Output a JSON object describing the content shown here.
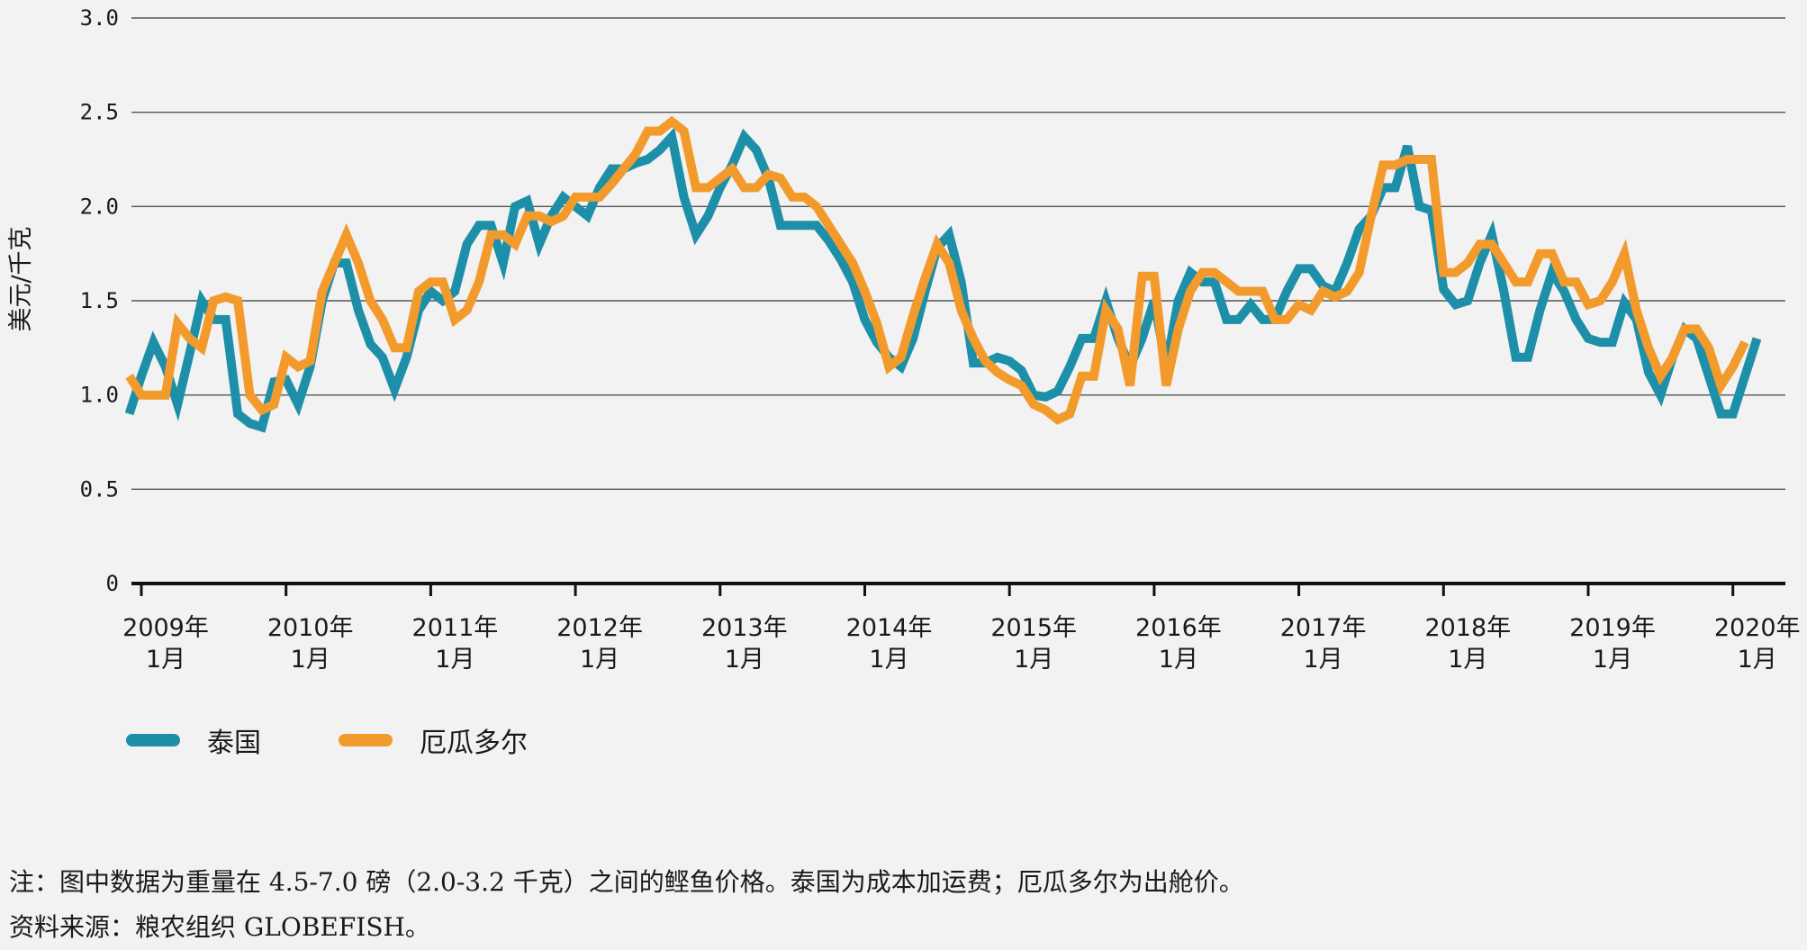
{
  "chart_data": {
    "type": "line",
    "ylabel": "美元/千克",
    "ylim": [
      0,
      3.0
    ],
    "yticks": [
      "0",
      "0.5",
      "1.0",
      "1.5",
      "2.0",
      "2.5",
      "3.0"
    ],
    "xtick_labels": [
      [
        "2009年",
        "1月"
      ],
      [
        "2010年",
        "1月"
      ],
      [
        "2011年",
        "1月"
      ],
      [
        "2012年",
        "1月"
      ],
      [
        "2013年",
        "1月"
      ],
      [
        "2014年",
        "1月"
      ],
      [
        "2015年",
        "1月"
      ],
      [
        "2016年",
        "1月"
      ],
      [
        "2017年",
        "1月"
      ],
      [
        "2018年",
        "1月"
      ],
      [
        "2019年",
        "1月"
      ],
      [
        "2020年",
        "1月"
      ]
    ],
    "x_start": "2008-12",
    "x_end": "2020-02",
    "series": [
      {
        "name": "泰国",
        "color": "#1d8fa8",
        "values": [
          0.9,
          1.1,
          1.28,
          1.15,
          0.95,
          1.22,
          1.5,
          1.4,
          1.4,
          0.9,
          0.85,
          0.83,
          1.07,
          1.08,
          0.95,
          1.15,
          1.5,
          1.7,
          1.7,
          1.45,
          1.27,
          1.2,
          1.03,
          1.2,
          1.45,
          1.55,
          1.5,
          1.55,
          1.8,
          1.9,
          1.9,
          1.7,
          2.0,
          2.03,
          1.8,
          1.95,
          2.05,
          2.0,
          1.95,
          2.1,
          2.2,
          2.2,
          2.23,
          2.25,
          2.3,
          2.37,
          2.05,
          1.85,
          1.95,
          2.1,
          2.22,
          2.37,
          2.3,
          2.15,
          1.9,
          1.9,
          1.9,
          1.9,
          1.82,
          1.72,
          1.6,
          1.4,
          1.28,
          1.2,
          1.15,
          1.3,
          1.55,
          1.78,
          1.85,
          1.6,
          1.17,
          1.17,
          1.2,
          1.18,
          1.13,
          1.0,
          0.99,
          1.02,
          1.15,
          1.3,
          1.3,
          1.5,
          1.3,
          1.15,
          1.3,
          1.5,
          1.15,
          1.5,
          1.65,
          1.6,
          1.6,
          1.4,
          1.4,
          1.48,
          1.4,
          1.4,
          1.55,
          1.67,
          1.67,
          1.58,
          1.55,
          1.7,
          1.88,
          1.95,
          2.1,
          2.1,
          2.32,
          2.0,
          1.98,
          1.56,
          1.48,
          1.5,
          1.7,
          1.85,
          1.55,
          1.2,
          1.2,
          1.45,
          1.65,
          1.55,
          1.4,
          1.3,
          1.28,
          1.28,
          1.49,
          1.4,
          1.12,
          1.0,
          1.2,
          1.35,
          1.3,
          1.1,
          0.9,
          0.9,
          1.1,
          1.3
        ]
      },
      {
        "name": "厄瓜多尔",
        "color": "#f29b2c",
        "values": [
          1.1,
          1.0,
          1.0,
          1.0,
          1.38,
          1.3,
          1.25,
          1.5,
          1.52,
          1.5,
          1.0,
          0.92,
          0.95,
          1.2,
          1.15,
          1.18,
          1.55,
          1.7,
          1.85,
          1.7,
          1.5,
          1.4,
          1.25,
          1.25,
          1.55,
          1.6,
          1.6,
          1.4,
          1.45,
          1.6,
          1.85,
          1.85,
          1.8,
          1.95,
          1.95,
          1.92,
          1.95,
          2.05,
          2.05,
          2.05,
          2.12,
          2.2,
          2.28,
          2.4,
          2.4,
          2.45,
          2.4,
          2.1,
          2.1,
          2.15,
          2.2,
          2.1,
          2.1,
          2.17,
          2.15,
          2.05,
          2.05,
          2.0,
          1.9,
          1.8,
          1.7,
          1.55,
          1.38,
          1.15,
          1.2,
          1.42,
          1.62,
          1.8,
          1.7,
          1.45,
          1.3,
          1.18,
          1.12,
          1.08,
          1.05,
          0.95,
          0.92,
          0.87,
          0.9,
          1.1,
          1.1,
          1.45,
          1.35,
          1.05,
          1.63,
          1.63,
          1.05,
          1.35,
          1.55,
          1.65,
          1.65,
          1.6,
          1.55,
          1.55,
          1.55,
          1.4,
          1.4,
          1.48,
          1.45,
          1.55,
          1.52,
          1.55,
          1.65,
          1.95,
          2.22,
          2.22,
          2.25,
          2.25,
          2.25,
          1.65,
          1.65,
          1.7,
          1.8,
          1.8,
          1.7,
          1.6,
          1.6,
          1.75,
          1.75,
          1.6,
          1.6,
          1.48,
          1.5,
          1.6,
          1.75,
          1.45,
          1.25,
          1.1,
          1.2,
          1.35,
          1.35,
          1.25,
          1.05,
          1.15,
          1.28
        ]
      }
    ]
  },
  "legend": {
    "thailand": {
      "label": "泰国",
      "color": "#1d8fa8"
    },
    "ecuador": {
      "label": "厄瓜多尔",
      "color": "#f29b2c"
    }
  },
  "notes": {
    "note": "注：图中数据为重量在 4.5-7.0 磅（2.0-3.2 千克）之间的鲣鱼价格。泰国为成本加运费；厄瓜多尔为出舱价。",
    "source": "资料来源：粮农组织 GLOBEFISH。"
  }
}
